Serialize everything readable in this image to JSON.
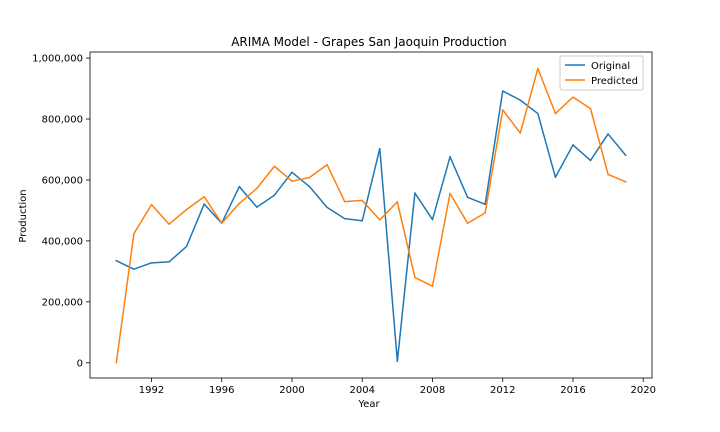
{
  "chart_data": {
    "type": "line",
    "title": "ARIMA Model - Grapes San Jaoquin Production",
    "xlabel": "Year",
    "ylabel": "Production",
    "xlim": [
      1988.5,
      2020.5
    ],
    "ylim": [
      -50000,
      1020000
    ],
    "x_ticks": [
      1992,
      1996,
      2000,
      2004,
      2008,
      2012,
      2016,
      2020
    ],
    "x_tick_labels": [
      "1992",
      "1996",
      "2000",
      "2004",
      "2008",
      "2012",
      "2016",
      "2020"
    ],
    "y_ticks": [
      0,
      200000,
      400000,
      600000,
      800000,
      1000000
    ],
    "y_tick_labels": [
      "0",
      "200,000",
      "400,000",
      "600,000",
      "800,000",
      "1,000,000"
    ],
    "grid": false,
    "legend_position": "top-right",
    "x": [
      1990,
      1991,
      1992,
      1993,
      1994,
      1995,
      1996,
      1997,
      1998,
      1999,
      2000,
      2001,
      2002,
      2003,
      2004,
      2005,
      2006,
      2007,
      2008,
      2009,
      2010,
      2011,
      2012,
      2013,
      2014,
      2015,
      2016,
      2017,
      2018,
      2019
    ],
    "series": [
      {
        "name": "Original",
        "color": "#1f77b4",
        "values": [
          335000,
          307000,
          328000,
          331000,
          382000,
          521000,
          458000,
          578000,
          511000,
          550000,
          625000,
          578000,
          510000,
          473000,
          466000,
          703000,
          5000,
          557000,
          470000,
          676000,
          543000,
          520000,
          892000,
          862000,
          818000,
          609000,
          715000,
          664000,
          751000,
          681000
        ]
      },
      {
        "name": "Predicted",
        "color": "#ff7f0e",
        "values": [
          0,
          424000,
          519000,
          455000,
          503000,
          545000,
          458000,
          523000,
          572000,
          645000,
          596000,
          608000,
          650000,
          529000,
          533000,
          469000,
          528000,
          280000,
          251000,
          556000,
          458000,
          492000,
          830000,
          754000,
          966000,
          818000,
          872000,
          834000,
          618000,
          594000
        ]
      }
    ]
  }
}
